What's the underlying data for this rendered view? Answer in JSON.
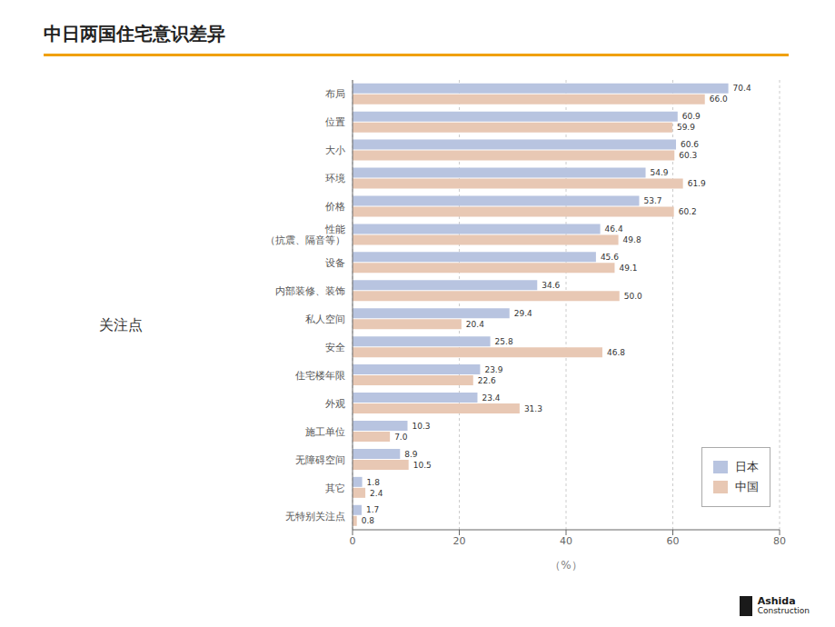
{
  "chart_data": {
    "type": "bar",
    "orientation": "horizontal",
    "title": "中日两国住宅意识差异",
    "annotations": [
      "关注点",
      "Ashida",
      "Construction"
    ],
    "categories": [
      "布局",
      "位置",
      "大小",
      "环境",
      "价格",
      "性能\n（抗震、隔音等）",
      "设备",
      "内部装修、装饰",
      "私人空间",
      "安全",
      "住宅楼年限",
      "外观",
      "施工单位",
      "无障碍空间",
      "其它",
      "无特别关注点"
    ],
    "series": [
      {
        "name": "日本",
        "color": "#b8c4e0",
        "values": [
          70.4,
          60.9,
          60.6,
          54.9,
          53.7,
          46.4,
          45.6,
          34.6,
          29.4,
          25.8,
          23.9,
          23.4,
          10.3,
          8.9,
          1.8,
          1.7
        ],
        "value_labels": [
          "70.4",
          "60.9",
          "60.6",
          "54.9",
          "53.7",
          "46.4",
          "45.6",
          "34.6",
          "29.4",
          "25.8",
          "23.9",
          "23.4",
          "10.3",
          "8.9",
          "1.8",
          "1.7"
        ]
      },
      {
        "name": "中国",
        "color": "#e8c8b4",
        "values": [
          66.0,
          59.9,
          60.3,
          61.9,
          60.2,
          49.8,
          49.1,
          50.0,
          20.4,
          46.8,
          22.6,
          31.3,
          7.0,
          10.5,
          2.4,
          0.8
        ],
        "value_labels": [
          "66.0",
          "59.9",
          "60.3",
          "61.9",
          "60.2",
          "49.8",
          "49.1",
          "50.0",
          "20.4",
          "46.8",
          "22.6",
          "31.3",
          "7.0",
          "10.5",
          "2.4",
          "0.8"
        ]
      }
    ],
    "xlabel": "（%）",
    "xlim": [
      0,
      80
    ],
    "xticks": [
      0,
      20,
      40,
      60,
      80
    ],
    "grid": true,
    "legend": "lower right",
    "data_labels": true
  }
}
